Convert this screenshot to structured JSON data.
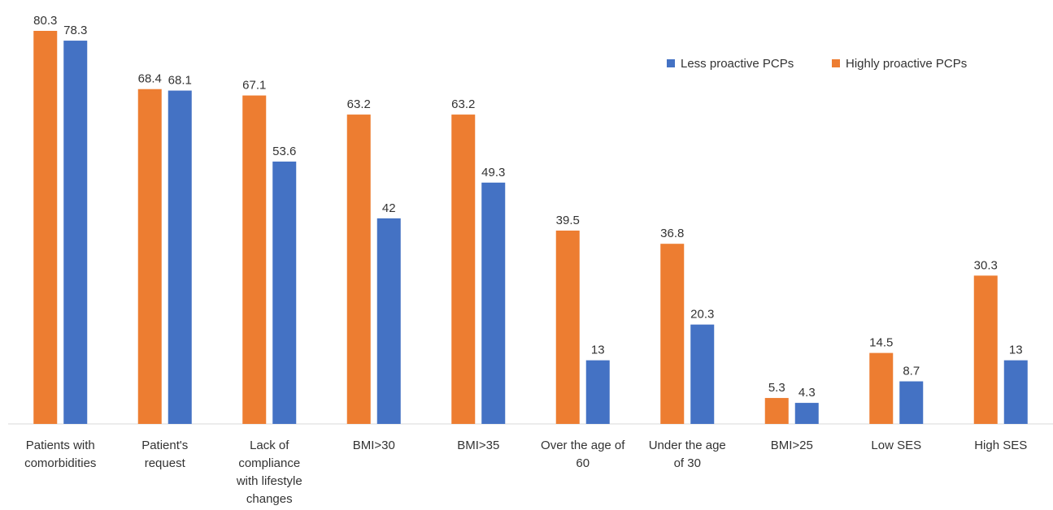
{
  "chart_data": {
    "type": "bar",
    "title": "",
    "xlabel": "",
    "ylabel": "",
    "ylim": [
      0,
      80.3
    ],
    "grid": false,
    "legend_position": "top-right",
    "categories": [
      "Patients with comorbidities",
      "Patient's request",
      "Lack of compliance with lifestyle changes",
      "BMI>30",
      "BMI>35",
      "Over the age of 60",
      "Under the age of 30",
      "BMI>25",
      "Low SES",
      "High SES"
    ],
    "category_lines": [
      [
        "Patients with",
        "comorbidities"
      ],
      [
        "Patient's",
        "request"
      ],
      [
        "Lack of",
        "compliance",
        "with lifestyle",
        "changes"
      ],
      [
        "BMI>30"
      ],
      [
        "BMI>35"
      ],
      [
        "Over the age of",
        "60"
      ],
      [
        "Under the age",
        "of 30"
      ],
      [
        "BMI>25"
      ],
      [
        "Low SES"
      ],
      [
        "High SES"
      ]
    ],
    "series": [
      {
        "name": "Highly proactive PCPs",
        "color": "#ED7D31",
        "values": [
          80.3,
          68.4,
          67.1,
          63.2,
          63.2,
          39.5,
          36.8,
          5.3,
          14.5,
          30.3
        ]
      },
      {
        "name": "Less proactive PCPs",
        "color": "#4472C4",
        "values": [
          78.3,
          68.1,
          53.6,
          42,
          49.3,
          13,
          20.3,
          4.3,
          8.7,
          13
        ]
      }
    ],
    "legend_order": [
      "Less proactive PCPs",
      "Highly proactive PCPs"
    ]
  }
}
